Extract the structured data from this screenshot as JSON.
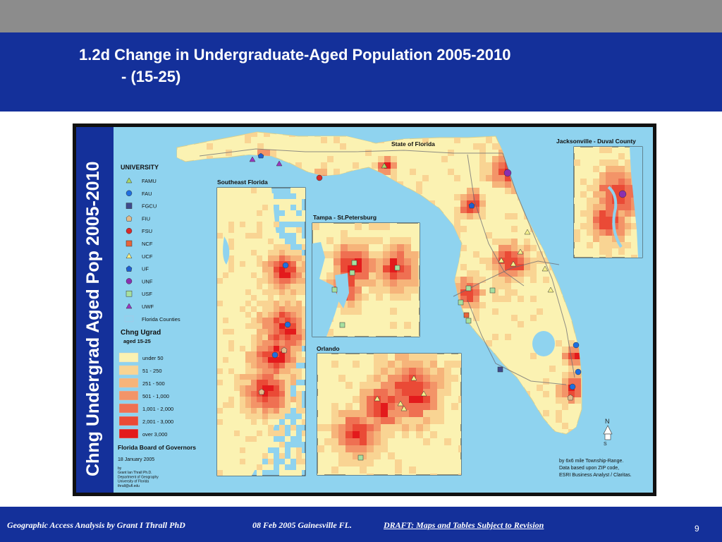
{
  "slide": {
    "title_line1": "1.2d Change in Undergraduate-Aged Population 2005-2010",
    "title_line2": "- (15-25)",
    "footer_author": "Geographic Access Analysis by Grant I Thrall PhD",
    "footer_date": "08 Feb 2005  Gainesville FL.",
    "footer_draft": "DRAFT:  Maps and Tables Subject to Revision",
    "page_number": "9"
  },
  "map": {
    "vertical_title": "Chng Undergrad Aged Pop 2005-2010",
    "main_label": "State of Florida",
    "inset_southeast": "Southeast Florida",
    "inset_tampa": "Tampa - St.Petersburg",
    "inset_orlando": "Orlando",
    "inset_jacksonville": "Jacksonville - Duval County",
    "north_label": "N",
    "source_note": [
      "by 6x6 mile Township-Range.",
      "Data based upon ZIP code,",
      "ESRI Business Analyst / Claritas."
    ],
    "colors": {
      "water": "#8fd3ef",
      "land_base": "#fbf2b2",
      "frame": "#111111",
      "sidebar": "#14309a"
    }
  },
  "legend": {
    "university_heading": "UNIVERSITY",
    "universities": [
      {
        "label": "FAMU",
        "shape": "triangle",
        "color": "#a9d86a"
      },
      {
        "label": "FAU",
        "shape": "circle",
        "color": "#1f6fe0"
      },
      {
        "label": "FGCU",
        "shape": "square",
        "color": "#3f4a8c"
      },
      {
        "label": "FIU",
        "shape": "pentagon",
        "color": "#e2b98a"
      },
      {
        "label": "FSU",
        "shape": "circle-red",
        "color": "#d92a2a"
      },
      {
        "label": "NCF",
        "shape": "square",
        "color": "#e8643a"
      },
      {
        "label": "UCF",
        "shape": "triangle",
        "color": "#f5f08a"
      },
      {
        "label": "UF",
        "shape": "pentagon",
        "color": "#1f5fd0"
      },
      {
        "label": "UNF",
        "shape": "circle",
        "color": "#8a2fb0"
      },
      {
        "label": "USF",
        "shape": "square",
        "color": "#a6e0a0"
      },
      {
        "label": "UWF",
        "shape": "triangle",
        "color": "#9a36c0"
      },
      {
        "label": "Florida Counties",
        "shape": "outline",
        "color": "#9ecbe8"
      }
    ],
    "change_heading_1": "Chng Ugrad",
    "change_heading_2": "aged 15-25",
    "classes": [
      {
        "label": "under 50",
        "color": "#fbf2b2"
      },
      {
        "label": "51 - 250",
        "color": "#f9d493"
      },
      {
        "label": "251 - 500",
        "color": "#f6b47a"
      },
      {
        "label": "501 - 1,000",
        "color": "#f39468"
      },
      {
        "label": "1,001 - 2,000",
        "color": "#ef7052"
      },
      {
        "label": "2,001 - 3,000",
        "color": "#ea4a36"
      },
      {
        "label": "over 3,000",
        "color": "#e31a1c"
      }
    ],
    "org": "Florida Board of Governors",
    "date": "18 January 2005",
    "credits": [
      "by",
      "Grant Ian Thrall Ph.D.",
      "Department of Geography",
      "University of Florida",
      "thrall@ufl.edu"
    ]
  }
}
